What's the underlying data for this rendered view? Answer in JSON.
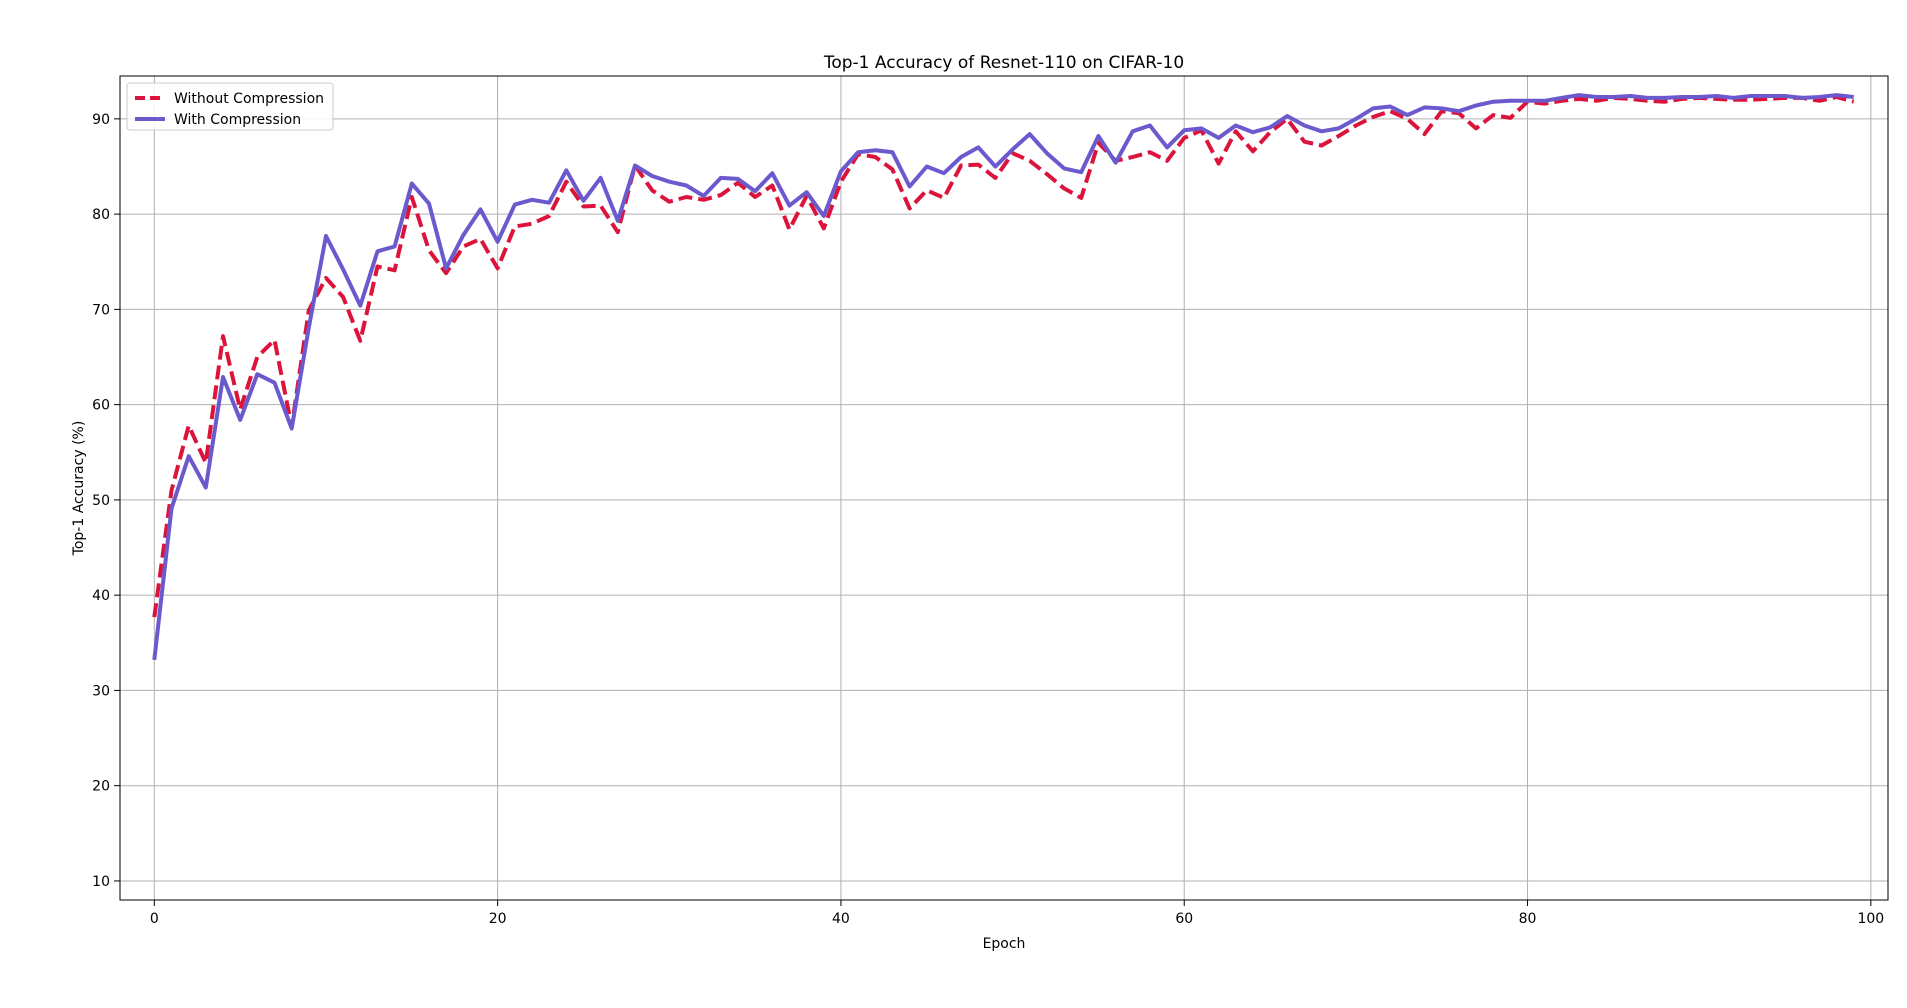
{
  "chart_data": {
    "type": "line",
    "title": "Top-1 Accuracy of Resnet-110 on CIFAR-10",
    "xlabel": "Epoch",
    "ylabel": "Top-1 Accuracy (%)",
    "xlim": [
      -2,
      101
    ],
    "ylim": [
      8,
      94.5
    ],
    "xticks": [
      0,
      20,
      40,
      60,
      80,
      100
    ],
    "yticks": [
      10,
      20,
      30,
      40,
      50,
      60,
      70,
      80,
      90
    ],
    "grid": true,
    "legend_position": "top-left",
    "x": [
      0,
      1,
      2,
      3,
      4,
      5,
      6,
      7,
      8,
      9,
      10,
      11,
      12,
      13,
      14,
      15,
      16,
      17,
      18,
      19,
      20,
      21,
      22,
      23,
      24,
      25,
      26,
      27,
      28,
      29,
      30,
      31,
      32,
      33,
      34,
      35,
      36,
      37,
      38,
      39,
      40,
      41,
      42,
      43,
      44,
      45,
      46,
      47,
      48,
      49,
      50,
      51,
      52,
      53,
      54,
      55,
      56,
      57,
      58,
      59,
      60,
      61,
      62,
      63,
      64,
      65,
      66,
      67,
      68,
      69,
      70,
      71,
      72,
      73,
      74,
      75,
      76,
      77,
      78,
      79,
      80,
      81,
      82,
      83,
      84,
      85,
      86,
      87,
      88,
      89,
      90,
      91,
      92,
      93,
      94,
      95,
      96,
      97,
      98,
      99
    ],
    "series": [
      {
        "name": "Without Compression",
        "color": "#dc143c",
        "style": "dashed",
        "values": [
          37.7,
          51.0,
          57.8,
          53.9,
          67.2,
          59.5,
          65.0,
          66.8,
          57.7,
          69.9,
          73.3,
          71.3,
          66.7,
          74.5,
          74.1,
          81.8,
          76.2,
          73.8,
          76.6,
          77.4,
          74.3,
          78.7,
          79.0,
          79.8,
          83.4,
          80.8,
          80.9,
          78.1,
          85.1,
          82.5,
          81.3,
          81.8,
          81.5,
          82.0,
          83.3,
          81.8,
          83.0,
          78.4,
          81.9,
          78.5,
          83.4,
          86.3,
          86.0,
          84.7,
          80.6,
          82.5,
          81.7,
          85.1,
          85.2,
          83.8,
          86.4,
          85.6,
          84.2,
          82.7,
          81.7,
          87.5,
          85.6,
          86.0,
          86.5,
          85.6,
          88.0,
          88.8,
          85.3,
          88.7,
          86.6,
          88.6,
          90.0,
          87.6,
          87.2,
          88.2,
          89.3,
          90.2,
          90.8,
          90.0,
          88.4,
          90.8,
          90.6,
          89.0,
          90.4,
          90.1,
          91.8,
          91.6,
          91.9,
          92.1,
          91.9,
          92.2,
          92.1,
          91.9,
          91.8,
          92.1,
          92.2,
          92.1,
          92.0,
          92.0,
          92.1,
          92.2,
          92.2,
          91.9,
          92.3,
          91.8
        ]
      },
      {
        "name": "With Compression",
        "color": "#6a5acd",
        "style": "solid",
        "values": [
          33.2,
          49.1,
          54.6,
          51.3,
          62.9,
          58.4,
          63.2,
          62.3,
          57.5,
          68.1,
          77.7,
          74.2,
          70.4,
          76.1,
          76.6,
          83.2,
          81.1,
          74.3,
          77.8,
          80.5,
          77.1,
          81.0,
          81.5,
          81.2,
          84.6,
          81.4,
          83.8,
          79.3,
          85.1,
          84.0,
          83.4,
          83.0,
          81.9,
          83.8,
          83.7,
          82.4,
          84.3,
          80.9,
          82.3,
          79.8,
          84.5,
          86.5,
          86.7,
          86.5,
          82.9,
          85.0,
          84.3,
          86.0,
          87.0,
          85.0,
          86.8,
          88.4,
          86.4,
          84.8,
          84.4,
          88.2,
          85.4,
          88.7,
          89.3,
          87.0,
          88.8,
          89.0,
          88.0,
          89.3,
          88.6,
          89.1,
          90.3,
          89.3,
          88.7,
          89.0,
          90.0,
          91.1,
          91.3,
          90.4,
          91.2,
          91.1,
          90.8,
          91.4,
          91.8,
          91.9,
          91.9,
          91.9,
          92.2,
          92.5,
          92.3,
          92.3,
          92.4,
          92.2,
          92.2,
          92.3,
          92.3,
          92.4,
          92.2,
          92.4,
          92.4,
          92.4,
          92.2,
          92.3,
          92.5,
          92.3
        ]
      }
    ]
  }
}
